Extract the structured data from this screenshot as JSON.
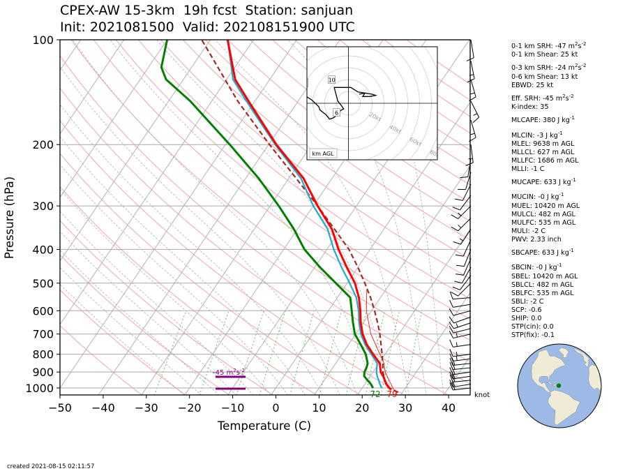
{
  "title": {
    "line1": "CPEX-AW 15-3km  19h fcst  Station: sanjuan",
    "line2": "Init: 2021081500  Valid: 202108151900 UTC"
  },
  "footer": {
    "created": "created 2021-08-15 02:11:57"
  },
  "params": [
    {
      "label": "0-1 km SRH: -47 m",
      "sup": "2",
      "mid": "s",
      "sup2": "-2"
    },
    {
      "label": "0-1 km Shear: 25 kt"
    },
    {
      "label": "0-3 km SRH: -24 m",
      "sup": "2",
      "mid": "s",
      "sup2": "-2"
    },
    {
      "label": "0-6 km Shear: 13 kt"
    },
    {
      "label": "EBWD: 25 kt"
    },
    {
      "label": "Eff. SRH: -45 m",
      "sup": "2",
      "mid": "s",
      "sup2": "-2"
    },
    {
      "label": "K-index: 35"
    },
    {
      "label": "MLCAPE: 380 J kg",
      "sup": "-1"
    },
    {
      "label": "MLCIN: -3 J kg",
      "sup": "-1"
    },
    {
      "label": "MLEL: 9638 m AGL"
    },
    {
      "label": "MLLCL: 627 m AGL"
    },
    {
      "label": "MLLFC: 1686 m AGL"
    },
    {
      "label": "MLLI: -1 C"
    },
    {
      "label": "MUCAPE: 633 J kg",
      "sup": "-1"
    },
    {
      "label": "MUCIN: -0 J kg",
      "sup": "-1"
    },
    {
      "label": "MUEL: 10420 m AGL"
    },
    {
      "label": "MULCL: 482 m AGL"
    },
    {
      "label": "MULFC: 535 m AGL"
    },
    {
      "label": "MULI: -2 C"
    },
    {
      "label": "PWV: 2.33 inch"
    },
    {
      "label": "SBCAPE: 633 J kg",
      "sup": "-1"
    },
    {
      "label": "SBCIN: -0 J kg",
      "sup": "-1"
    },
    {
      "label": "SBEL: 10420 m AGL"
    },
    {
      "label": "SBLCL: 482 m AGL"
    },
    {
      "label": "SBLFC: 535 m AGL"
    },
    {
      "label": "SBLI: -2 C"
    },
    {
      "label": "SCP: -0.6"
    },
    {
      "label": "SHIP: 0.0"
    },
    {
      "label": "STP(cin): 0.0"
    },
    {
      "label": "STP(fix): -0.1"
    }
  ],
  "chart_data": {
    "type": "line",
    "subtype": "skew-t log-p",
    "xlabel": "Temperature (C)",
    "ylabel": "Pressure (hPa)",
    "xlim": [
      -50,
      45
    ],
    "ylim": [
      1050,
      100
    ],
    "y_scale": "log",
    "xticks": [
      "−50",
      "−40",
      "−30",
      "−20",
      "−10",
      "0",
      "10",
      "20",
      "30",
      "40"
    ],
    "yticks": [
      "100",
      "200",
      "300",
      "400",
      "500",
      "600",
      "700",
      "800",
      "900",
      "1000"
    ],
    "colors": {
      "temperature": "#ff0000",
      "dewpoint": "#008000",
      "virtual": "#22aacc",
      "parcel": "#a52a2a",
      "dry_adiabat": "#f4a6a6",
      "moist_adiabat": "#b0b0b0",
      "mixing_ratio": "#66bb66",
      "srh": "#800080"
    },
    "series": [
      {
        "key": "temperature",
        "pressure": [
          1010,
          1000,
          975,
          950,
          925,
          900,
          875,
          850,
          800,
          750,
          700,
          650,
          600,
          550,
          500,
          450,
          400,
          350,
          300,
          250,
          200,
          150,
          130,
          100
        ],
        "values": [
          27,
          26.2,
          25,
          24,
          23,
          21.8,
          21,
          20.2,
          17.2,
          14.2,
          11.6,
          9.4,
          7.4,
          5,
          1.8,
          -2.6,
          -7.3,
          -12,
          -19,
          -26.6,
          -38.2,
          -51.5,
          -58,
          -66
        ]
      },
      {
        "key": "virtual",
        "pressure": [
          1000,
          975,
          950,
          925,
          900,
          850,
          800,
          750,
          700,
          650,
          600,
          550,
          500,
          450,
          400,
          350,
          300,
          250,
          200,
          150,
          130,
          100
        ],
        "values": [
          24.5,
          23.5,
          22.6,
          21.6,
          20.8,
          19.6,
          16.8,
          13.8,
          11.2,
          9,
          7,
          4.4,
          0.6,
          -3.8,
          -8.4,
          -13,
          -20,
          -27.2,
          -38.5,
          -52,
          -58.5,
          -66
        ]
      },
      {
        "key": "dewpoint",
        "pressure": [
          1000,
          975,
          950,
          925,
          900,
          875,
          850,
          800,
          750,
          700,
          650,
          600,
          550,
          500,
          450,
          400,
          350,
          300,
          250,
          200,
          150,
          130,
          120,
          100
        ],
        "values": [
          22.5,
          21.4,
          20,
          18.6,
          18,
          17.8,
          17.4,
          15.5,
          12.8,
          9.8,
          7.6,
          5.4,
          3,
          -2.6,
          -8.8,
          -15.2,
          -20.8,
          -28,
          -37,
          -49,
          -65,
          -74,
          -77,
          -80
        ]
      },
      {
        "key": "parcel",
        "pressure": [
          1030,
          1000,
          950,
          900,
          850,
          800,
          750,
          700,
          650,
          600,
          550,
          500,
          450,
          400,
          350,
          300,
          250,
          200,
          150,
          100
        ],
        "values": [
          29,
          26.3,
          24,
          22.3,
          20.9,
          19.3,
          17.5,
          15.6,
          13.3,
          10.7,
          7.7,
          4.1,
          0,
          -4.9,
          -11.4,
          -19,
          -28.3,
          -39.8,
          -54,
          -72
        ]
      },
      {
        "key": "environment-thin",
        "pressure": [
          1010,
          950,
          900,
          850,
          800,
          700,
          600,
          520
        ],
        "values": [
          27.5,
          25,
          22.8,
          21.2,
          18.8,
          13.5,
          8.8,
          5.5
        ]
      }
    ],
    "annotations": {
      "surface_temp_f": "79",
      "surface_dewp_f": "72",
      "srh_label": "-45 m",
      "srh_sup1": "2",
      "srh_mid": "s",
      "srh_sup2": "-2",
      "barb_unit": "knot",
      "hodo_label": "km AGL",
      "hodo_heights": [
        "2",
        "10",
        "6"
      ],
      "hodo_rings": [
        "20kt",
        "40kt",
        "60kt",
        "80kt"
      ]
    },
    "wind_barbs": [
      {
        "p": 1000,
        "u": -18,
        "v": -2
      },
      {
        "p": 975,
        "u": -19,
        "v": -3
      },
      {
        "p": 950,
        "u": -20,
        "v": -2
      },
      {
        "p": 925,
        "u": -20,
        "v": -3
      },
      {
        "p": 900,
        "u": -21,
        "v": -3
      },
      {
        "p": 875,
        "u": -20,
        "v": -2
      },
      {
        "p": 850,
        "u": -19,
        "v": -2
      },
      {
        "p": 825,
        "u": -17,
        "v": -2
      },
      {
        "p": 800,
        "u": -16,
        "v": -2
      },
      {
        "p": 750,
        "u": -14,
        "v": -2
      },
      {
        "p": 700,
        "u": -13,
        "v": -3
      },
      {
        "p": 675,
        "u": -12,
        "v": -3
      },
      {
        "p": 650,
        "u": -12,
        "v": -4
      },
      {
        "p": 625,
        "u": -11,
        "v": -4
      },
      {
        "p": 600,
        "u": -11,
        "v": -3
      },
      {
        "p": 575,
        "u": -12,
        "v": -2
      },
      {
        "p": 550,
        "u": -12,
        "v": -1
      },
      {
        "p": 500,
        "u": -8,
        "v": -8
      },
      {
        "p": 475,
        "u": -6,
        "v": -8
      },
      {
        "p": 450,
        "u": -5,
        "v": -9
      },
      {
        "p": 425,
        "u": -4,
        "v": -9
      },
      {
        "p": 400,
        "u": -4,
        "v": -10
      },
      {
        "p": 375,
        "u": -5,
        "v": -11
      },
      {
        "p": 350,
        "u": -8,
        "v": -12
      },
      {
        "p": 325,
        "u": -10,
        "v": -10
      },
      {
        "p": 300,
        "u": -9,
        "v": -9
      },
      {
        "p": 280,
        "u": -6,
        "v": -8
      },
      {
        "p": 260,
        "u": -4,
        "v": -8
      },
      {
        "p": 240,
        "u": -3,
        "v": -10
      },
      {
        "p": 220,
        "u": -2,
        "v": -12
      },
      {
        "p": 200,
        "u": 2,
        "v": -16
      },
      {
        "p": 170,
        "u": 4,
        "v": -14
      },
      {
        "p": 150,
        "u": 6,
        "v": -12
      },
      {
        "p": 130,
        "u": 4,
        "v": -14
      },
      {
        "p": 115,
        "u": 3,
        "v": -15
      },
      {
        "p": 100,
        "u": 2,
        "v": -12
      }
    ],
    "hodograph": {
      "xlim": [
        -35,
        75
      ],
      "ylim": [
        -50,
        50
      ],
      "u": [
        -37,
        -31,
        -25,
        -24,
        -19,
        -16,
        -13,
        -10,
        -9,
        -6,
        -4,
        -6,
        -9,
        -12,
        2,
        8,
        20,
        23,
        18,
        12,
        14,
        9
      ],
      "v": [
        7,
        3,
        -3,
        -6,
        -10,
        -14,
        -13,
        -11,
        -9,
        -6,
        -5,
        -2,
        2,
        14,
        14,
        10,
        8,
        7,
        6,
        6,
        9,
        8
      ]
    },
    "globe": {
      "lon0": -65,
      "lat0": 18,
      "station_lon": -66.0,
      "station_lat": 18.4
    }
  }
}
